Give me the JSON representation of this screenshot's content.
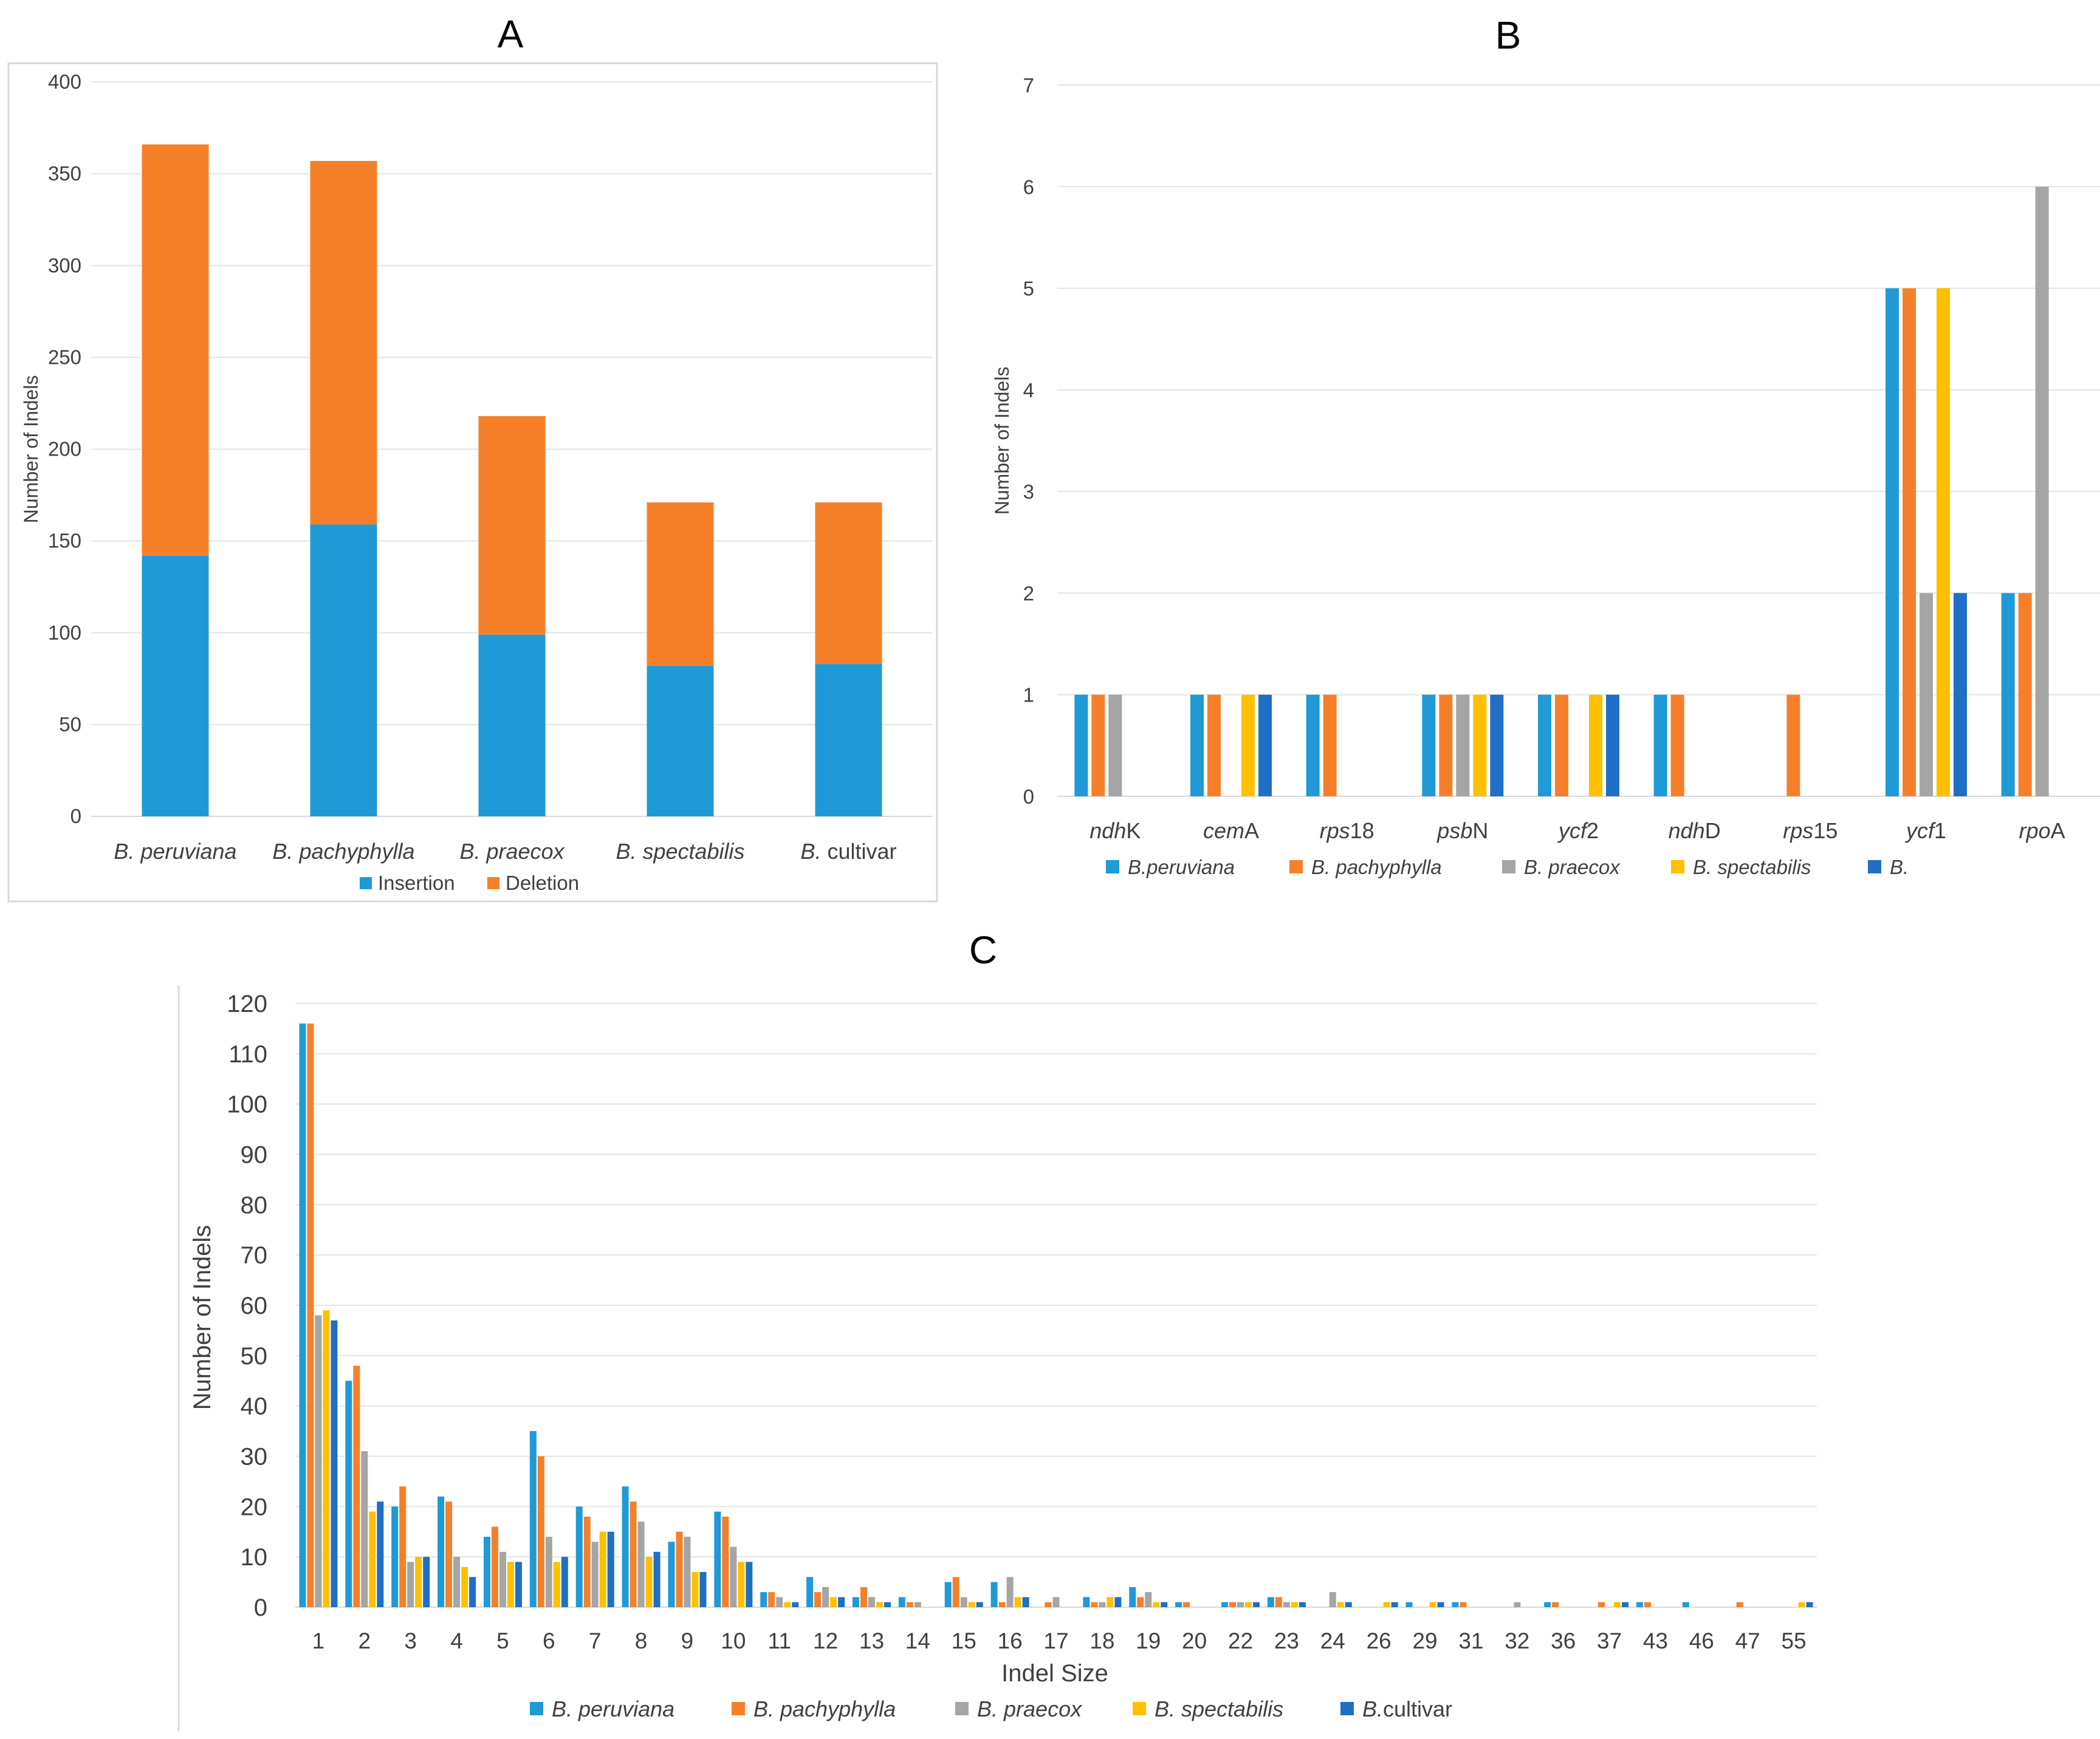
{
  "colors": {
    "peruviana": "#1f9ad6",
    "pachyphylla": "#f6802a",
    "praecox": "#a5a5a5",
    "spectabilis": "#ffc000",
    "cultivar": "#1f6fc5",
    "insertion": "#1f9ad6",
    "deletion": "#f6802a",
    "grid": "#e4e4e4",
    "border": "#d9d9d9"
  },
  "chart_data": [
    {
      "panel": "A",
      "type": "bar",
      "stacked": true,
      "title": "",
      "ylabel": "Number of Indels",
      "xlabel": "",
      "ylim": [
        0,
        400
      ],
      "yticks": [
        0,
        50,
        100,
        150,
        200,
        250,
        300,
        350,
        400
      ],
      "categories": [
        {
          "italic": "B. peruviana",
          "plain": ""
        },
        {
          "italic": "B. pachyphylla",
          "plain": ""
        },
        {
          "italic": "B. praecox",
          "plain": ""
        },
        {
          "italic": "B. spectabilis",
          "plain": ""
        },
        {
          "italic": "B.",
          "plain": " cultivar"
        }
      ],
      "series": [
        {
          "name": "Insertion",
          "color_key": "insertion",
          "values": [
            142,
            159,
            99,
            82,
            83
          ]
        },
        {
          "name": "Deletion",
          "color_key": "deletion",
          "values": [
            224,
            198,
            119,
            89,
            88
          ]
        }
      ],
      "legend_position": "bottom"
    },
    {
      "panel": "B",
      "type": "bar",
      "title": "",
      "ylabel": "Number of Indels",
      "xlabel": "",
      "ylim": [
        0,
        7
      ],
      "yticks": [
        0,
        1,
        2,
        3,
        4,
        5,
        6,
        7
      ],
      "categories": [
        {
          "italic": "ndh",
          "plain": "K"
        },
        {
          "italic": "cem",
          "plain": "A"
        },
        {
          "italic": "rps",
          "plain": "18"
        },
        {
          "italic": "psb",
          "plain": "N"
        },
        {
          "italic": "ycf",
          "plain": "2"
        },
        {
          "italic": "ndh",
          "plain": "D"
        },
        {
          "italic": "rps",
          "plain": "15"
        },
        {
          "italic": "ycf",
          "plain": "1"
        },
        {
          "italic": "rpo",
          "plain": "A"
        }
      ],
      "series": [
        {
          "name": "B.peruviana",
          "color_key": "peruviana",
          "values": [
            1,
            1,
            1,
            1,
            1,
            1,
            0,
            5,
            2
          ]
        },
        {
          "name": "B. pachyphylla",
          "color_key": "pachyphylla",
          "values": [
            1,
            1,
            1,
            1,
            1,
            1,
            1,
            5,
            2
          ]
        },
        {
          "name": "B. praecox",
          "color_key": "praecox",
          "values": [
            1,
            0,
            0,
            1,
            0,
            0,
            0,
            2,
            6
          ]
        },
        {
          "name": "B. spectabilis",
          "color_key": "spectabilis",
          "values": [
            0,
            1,
            0,
            1,
            1,
            0,
            0,
            5,
            0
          ]
        },
        {
          "name": "B.",
          "color_key": "cultivar",
          "values": [
            0,
            1,
            0,
            1,
            1,
            0,
            0,
            2,
            0
          ]
        }
      ],
      "legend_position": "bottom"
    },
    {
      "panel": "C",
      "type": "bar",
      "title": "",
      "ylabel": "Number of Indels",
      "xlabel": "Indel Size",
      "ylim": [
        0,
        120
      ],
      "yticks": [
        0,
        10,
        20,
        30,
        40,
        50,
        60,
        70,
        80,
        90,
        100,
        110,
        120
      ],
      "categories": [
        "1",
        "2",
        "3",
        "4",
        "5",
        "6",
        "7",
        "8",
        "9",
        "10",
        "11",
        "12",
        "13",
        "14",
        "15",
        "16",
        "17",
        "18",
        "19",
        "20",
        "22",
        "23",
        "24",
        "26",
        "29",
        "31",
        "32",
        "36",
        "37",
        "43",
        "46",
        "47",
        "55"
      ],
      "series": [
        {
          "name": "B. peruviana",
          "italic": "B. peruviana",
          "plain": "",
          "color_key": "peruviana",
          "values": [
            116,
            45,
            20,
            22,
            14,
            35,
            20,
            24,
            13,
            19,
            3,
            6,
            2,
            2,
            5,
            5,
            0,
            2,
            4,
            1,
            1,
            2,
            0,
            0,
            1,
            1,
            0,
            1,
            0,
            1,
            1,
            0,
            0
          ]
        },
        {
          "name": "B. pachyphylla",
          "italic": "B. pachyphylla",
          "plain": "",
          "color_key": "pachyphylla",
          "values": [
            116,
            48,
            24,
            21,
            16,
            30,
            18,
            21,
            15,
            18,
            3,
            3,
            4,
            1,
            6,
            1,
            1,
            1,
            2,
            1,
            1,
            2,
            0,
            0,
            0,
            1,
            0,
            1,
            1,
            1,
            0,
            1,
            0
          ]
        },
        {
          "name": "B. praecox",
          "italic": "B. praecox",
          "plain": "",
          "color_key": "praecox",
          "values": [
            58,
            31,
            9,
            10,
            11,
            14,
            13,
            17,
            14,
            12,
            2,
            4,
            2,
            1,
            2,
            6,
            2,
            1,
            3,
            0,
            1,
            1,
            3,
            0,
            0,
            0,
            1,
            0,
            0,
            0,
            0,
            0,
            0
          ]
        },
        {
          "name": "B. spectabilis",
          "italic": "B. spectabilis",
          "plain": "",
          "color_key": "spectabilis",
          "values": [
            59,
            19,
            10,
            8,
            9,
            9,
            15,
            10,
            7,
            9,
            1,
            2,
            1,
            0,
            1,
            2,
            0,
            2,
            1,
            0,
            1,
            1,
            1,
            1,
            1,
            0,
            0,
            0,
            1,
            0,
            0,
            0,
            1
          ]
        },
        {
          "name": "B.cultivar",
          "italic": "B.",
          "plain": "cultivar",
          "color_key": "cultivar",
          "values": [
            57,
            21,
            10,
            6,
            9,
            10,
            15,
            11,
            7,
            9,
            1,
            2,
            1,
            0,
            1,
            2,
            0,
            2,
            1,
            0,
            1,
            1,
            1,
            1,
            1,
            0,
            0,
            0,
            1,
            0,
            0,
            0,
            1
          ]
        }
      ],
      "legend_position": "bottom"
    }
  ],
  "panels": {
    "a_label": "A",
    "b_label": "B",
    "c_label": "C"
  }
}
